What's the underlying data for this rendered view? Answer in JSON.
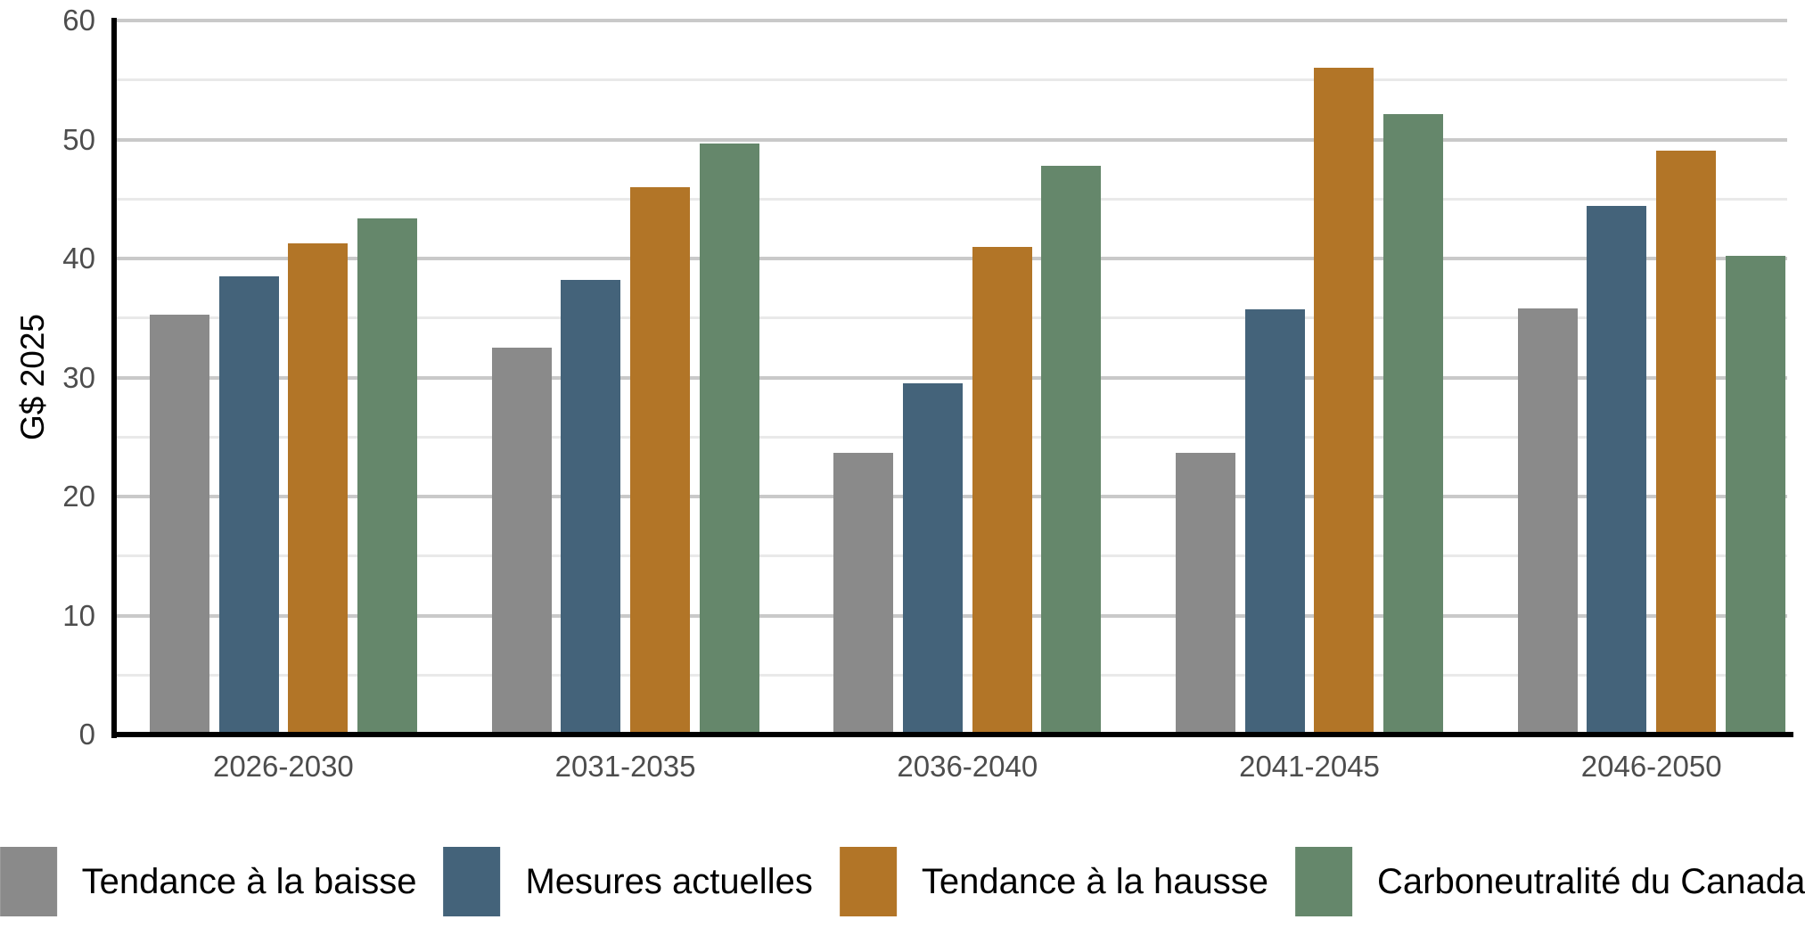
{
  "chart_data": {
    "type": "bar",
    "title": "",
    "ylabel": "G$ 2025",
    "xlabel": "",
    "categories": [
      "2026-2030",
      "2031-2035",
      "2036-2040",
      "2041-2045",
      "2046-2050"
    ],
    "series": [
      {
        "name": "Tendance à la baisse",
        "color": "#8a8a8a",
        "values": [
          35.3,
          32.5,
          23.7,
          23.7,
          35.8
        ]
      },
      {
        "name": "Mesures actuelles",
        "color": "#44637a",
        "values": [
          38.5,
          38.2,
          29.5,
          35.7,
          44.4
        ]
      },
      {
        "name": "Tendance à la hausse",
        "color": "#b27527",
        "values": [
          41.3,
          46.0,
          41.0,
          56.0,
          49.1
        ]
      },
      {
        "name": "Carboneutralité du Canada",
        "color": "#65876b",
        "values": [
          43.4,
          49.7,
          47.8,
          52.1,
          40.2
        ]
      }
    ],
    "ylim": [
      0,
      60
    ],
    "ytick_step": 10,
    "minor_grid_step": 5,
    "yticks": [
      "0",
      "10",
      "20",
      "30",
      "40",
      "50",
      "60"
    ],
    "grid": true,
    "legend_position": "bottom"
  },
  "style": {
    "axis_color": "#000000",
    "tick_label_color": "#4d4d4d",
    "major_grid_color": "#c9c9c9",
    "minor_grid_color": "#e9e9e9",
    "background": "#ffffff"
  }
}
